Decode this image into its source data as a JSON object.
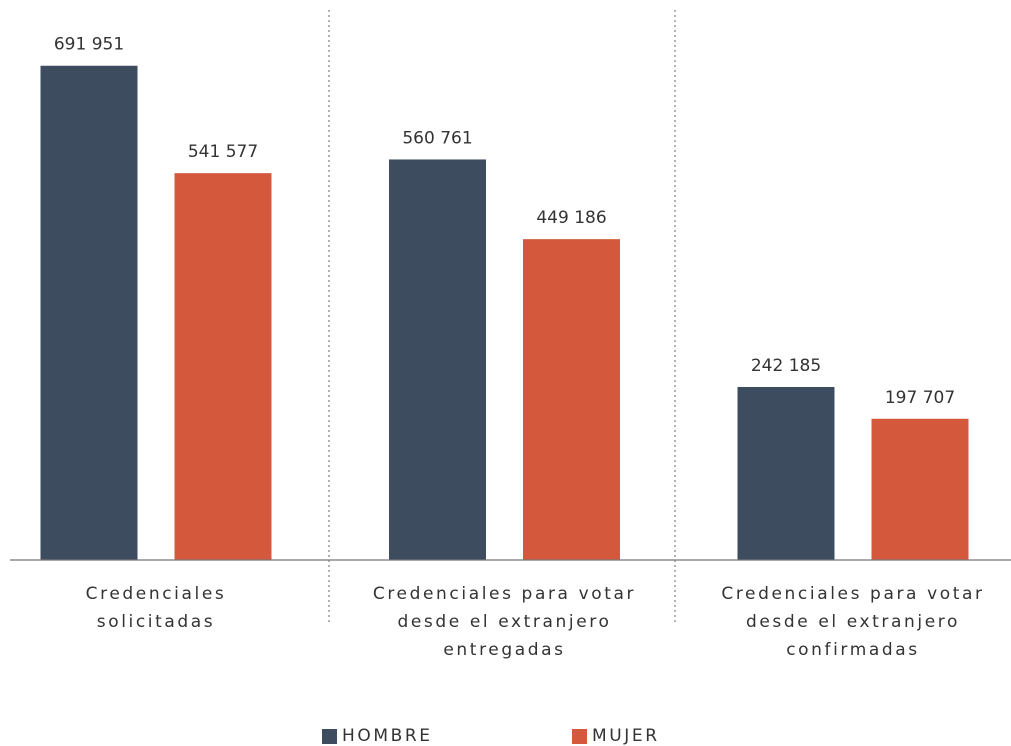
{
  "chart_data": {
    "type": "bar",
    "categories": [
      "Credenciales solicitadas",
      "Credenciales para votar desde el extranjero entregadas",
      "Credenciales para votar desde el extranjero confirmadas"
    ],
    "series": [
      {
        "name": "HOMBRE",
        "color": "#3d4d5f",
        "values": [
          691951,
          560761,
          242185
        ],
        "value_labels": [
          "691 951",
          "560 761",
          "242 185"
        ]
      },
      {
        "name": "MUJER",
        "color": "#d4583c",
        "values": [
          541577,
          449186,
          197707
        ],
        "value_labels": [
          "541 577",
          "449 186",
          "197 707"
        ]
      }
    ],
    "ylim": [
      0,
      700000
    ]
  }
}
